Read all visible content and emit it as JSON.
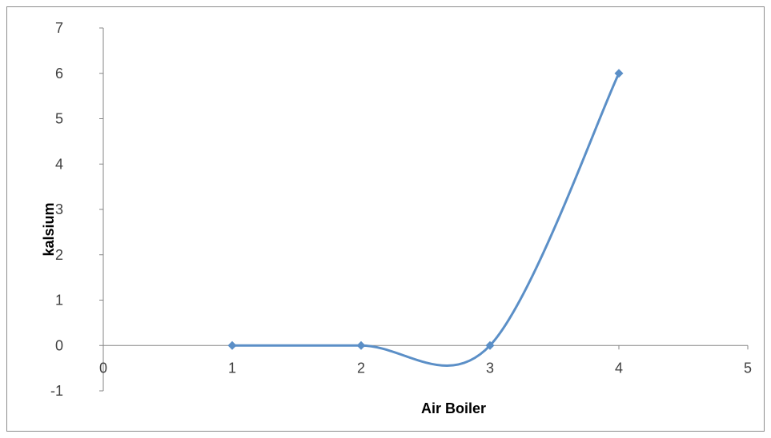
{
  "chart_data": {
    "type": "scatter",
    "title": "",
    "xlabel": "Air Boiler",
    "ylabel": "kalsium",
    "xlim": [
      0,
      5
    ],
    "ylim": [
      -1,
      7
    ],
    "x_ticks": [
      "0",
      "1",
      "2",
      "3",
      "4",
      "5"
    ],
    "y_ticks": [
      "-1",
      "0",
      "1",
      "2",
      "3",
      "4",
      "5",
      "6",
      "7"
    ],
    "grid": false,
    "legend": "none",
    "smoothed_line": true,
    "series": [
      {
        "x": [
          1,
          2,
          3,
          4
        ],
        "y": [
          0,
          0,
          0,
          6
        ],
        "color": "#5b8fc7",
        "marker": "diamond"
      }
    ]
  }
}
